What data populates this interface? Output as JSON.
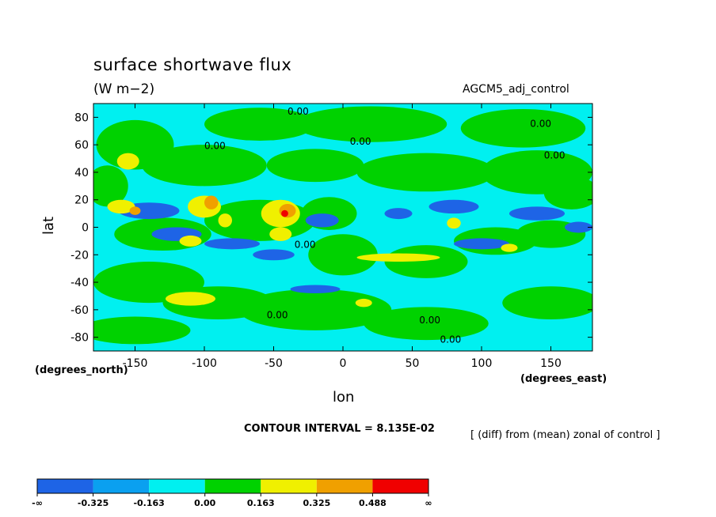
{
  "chart_data": {
    "type": "heatmap",
    "title": "surface shortwave flux",
    "units": "(W m−2)",
    "experiment": "AGCM5_adj_control",
    "xlabel": "lon",
    "ylabel": "lat",
    "x_units": "(degrees_east)",
    "y_units": "(degrees_north)",
    "xlim": [
      -180,
      180
    ],
    "ylim": [
      -90,
      90
    ],
    "x_ticks": [
      -150,
      -100,
      -50,
      0,
      50,
      100,
      150
    ],
    "y_ticks": [
      -80,
      -60,
      -40,
      -20,
      0,
      20,
      40,
      60,
      80
    ],
    "contour_interval": "CONTOUR INTERVAL = 8.135E-02",
    "description": "[ (diff) from (mean) zonal of control ]",
    "contour_labels": [
      "0.00"
    ],
    "colorbar": {
      "labels": [
        "-∞",
        "-0.325",
        "-0.163",
        "0.00",
        "0.163",
        "0.325",
        "0.488",
        "∞"
      ],
      "colors": [
        "#1e64e6",
        "#0aa0f0",
        "#00f0f0",
        "#00d200",
        "#f0f000",
        "#f0a000",
        "#f00000"
      ]
    },
    "colors": {
      "strong_negative": "#1e64e6",
      "negative": "#0aa0f0",
      "near_zero_negative": "#00f0f0",
      "near_zero_positive": "#00d200",
      "positive": "#f0f000",
      "strong_positive": "#f0a000",
      "max_positive": "#f00000"
    }
  }
}
